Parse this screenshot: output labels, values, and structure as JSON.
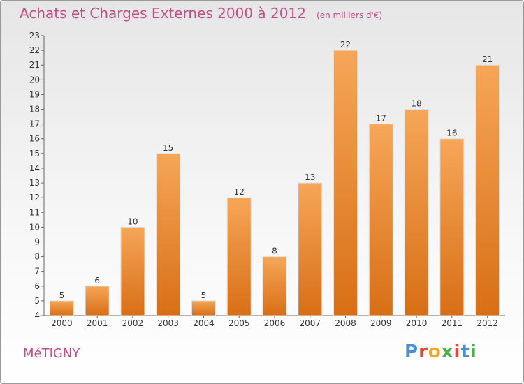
{
  "header": {
    "title": "Achats et Charges Externes 2000 à 2012",
    "unit": "(en milliers d'€)"
  },
  "footer": {
    "town": "MéTIGNY",
    "logo": {
      "letters": [
        "P",
        "r",
        "o",
        "x",
        "i",
        "t",
        "i"
      ],
      "colors": [
        "#4a8fd1",
        "#e8442e",
        "#f2a62a",
        "#4bb04a",
        "#e8442e",
        "#4a8fd1",
        "#4bb04a"
      ]
    }
  },
  "colors": {
    "bar_top": "#f6a658",
    "bar_bottom": "#d86f16",
    "text": "#333333",
    "grid": "#999999",
    "accent": "#c0508a"
  },
  "chart_data": {
    "type": "bar",
    "categories": [
      "2000",
      "2001",
      "2002",
      "2003",
      "2004",
      "2005",
      "2006",
      "2007",
      "2008",
      "2009",
      "2010",
      "2011",
      "2012"
    ],
    "values": [
      5,
      6,
      10,
      15,
      5,
      12,
      8,
      13,
      22,
      17,
      18,
      16,
      21
    ],
    "ylim": [
      4,
      23
    ],
    "yticks": [
      4,
      5,
      6,
      7,
      8,
      9,
      10,
      11,
      12,
      13,
      14,
      15,
      16,
      17,
      18,
      19,
      20,
      21,
      22,
      23
    ],
    "data_labels": [
      "5",
      "6",
      "10",
      "15",
      "5",
      "12",
      "8",
      "13",
      "22",
      "17",
      "18",
      "16",
      "21"
    ],
    "grid": false,
    "legend": "none"
  }
}
